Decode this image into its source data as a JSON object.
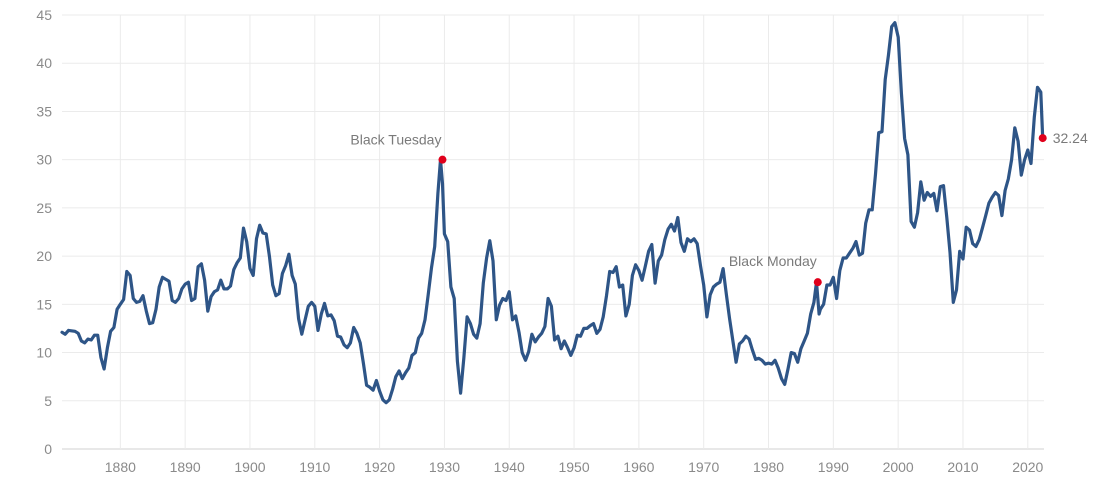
{
  "chart_data": {
    "type": "line",
    "title": "",
    "xlabel": "",
    "ylabel": "",
    "xlim": [
      1871,
      2022.5
    ],
    "ylim": [
      0,
      45
    ],
    "x_ticks": [
      1880,
      1890,
      1900,
      1910,
      1920,
      1930,
      1940,
      1950,
      1960,
      1970,
      1980,
      1990,
      2000,
      2010,
      2020
    ],
    "y_ticks": [
      0,
      5,
      10,
      15,
      20,
      25,
      30,
      35,
      40,
      45
    ],
    "grid": true,
    "line_color": "#2e5587",
    "marker_color": "#e0001b",
    "series": [
      {
        "x": [
          1871,
          1871.5,
          1872,
          1873,
          1873.5,
          1874,
          1874.5,
          1875,
          1875.5,
          1876,
          1876.5,
          1877,
          1877.5,
          1878,
          1878.5,
          1879,
          1879.5,
          1880,
          1880.5,
          1881,
          1881.5,
          1882,
          1882.5,
          1883,
          1883.5,
          1884,
          1884.5,
          1885,
          1885.5,
          1886,
          1886.5,
          1887,
          1887.5,
          1888,
          1888.5,
          1889,
          1889.5,
          1890,
          1890.5,
          1891,
          1891.5,
          1892,
          1892.5,
          1893,
          1893.5,
          1894,
          1894.5,
          1895,
          1895.5,
          1896,
          1896.5,
          1897,
          1897.5,
          1898,
          1898.5,
          1899,
          1899.5,
          1900,
          1900.5,
          1901,
          1901.5,
          1902,
          1902.5,
          1903,
          1903.5,
          1904,
          1904.5,
          1905,
          1905.5,
          1906,
          1906.5,
          1907,
          1907.5,
          1908,
          1908.5,
          1909,
          1909.5,
          1910,
          1910.5,
          1911,
          1911.5,
          1912,
          1912.5,
          1913,
          1913.5,
          1914,
          1914.5,
          1915,
          1915.5,
          1916,
          1916.5,
          1917,
          1917.5,
          1918,
          1918.5,
          1919,
          1919.5,
          1920,
          1920.5,
          1921,
          1921.5,
          1922,
          1922.5,
          1923,
          1923.5,
          1924,
          1924.5,
          1925,
          1925.5,
          1926,
          1926.5,
          1927,
          1927.5,
          1928,
          1928.5,
          1929,
          1929.4,
          1929.7,
          1930,
          1930.5,
          1931,
          1931.5,
          1932,
          1932.5,
          1933,
          1933.5,
          1934,
          1934.5,
          1935,
          1935.5,
          1936,
          1936.5,
          1937,
          1937.5,
          1938,
          1938.5,
          1939,
          1939.5,
          1940,
          1940.5,
          1941,
          1941.5,
          1942,
          1942.5,
          1943,
          1943.5,
          1944,
          1944.5,
          1945,
          1945.5,
          1946,
          1946.5,
          1947,
          1947.5,
          1948,
          1948.5,
          1949,
          1949.5,
          1950,
          1950.5,
          1951,
          1951.5,
          1952,
          1952.5,
          1953,
          1953.5,
          1954,
          1954.5,
          1955,
          1955.5,
          1956,
          1956.5,
          1957,
          1957.5,
          1958,
          1958.5,
          1959,
          1959.5,
          1960,
          1960.5,
          1961,
          1961.5,
          1962,
          1962.5,
          1963,
          1963.5,
          1964,
          1964.5,
          1965,
          1965.5,
          1966,
          1966.5,
          1967,
          1967.5,
          1968,
          1968.5,
          1969,
          1969.5,
          1970,
          1970.5,
          1971,
          1971.5,
          1972,
          1972.5,
          1973,
          1973.5,
          1974,
          1974.5,
          1975,
          1975.5,
          1976,
          1976.5,
          1977,
          1977.5,
          1978,
          1978.5,
          1979,
          1979.5,
          1980,
          1980.5,
          1981,
          1981.5,
          1982,
          1982.5,
          1983,
          1983.5,
          1984,
          1984.5,
          1985,
          1985.5,
          1986,
          1986.5,
          1987,
          1987.4,
          1987.8,
          1988,
          1988.5,
          1989,
          1989.5,
          1990,
          1990.5,
          1991,
          1991.5,
          1992,
          1992.5,
          1993,
          1993.5,
          1994,
          1994.5,
          1995,
          1995.5,
          1996,
          1996.5,
          1997,
          1997.5,
          1998,
          1998.5,
          1999,
          1999.5,
          2000,
          2000.5,
          2001,
          2001.5,
          2002,
          2002.5,
          2003,
          2003.5,
          2004,
          2004.5,
          2005,
          2005.5,
          2006,
          2006.5,
          2007,
          2007.5,
          2008,
          2008.5,
          2009,
          2009.5,
          2010,
          2010.5,
          2011,
          2011.5,
          2012,
          2012.5,
          2013,
          2013.5,
          2014,
          2014.5,
          2015,
          2015.5,
          2016,
          2016.5,
          2017,
          2017.5,
          2018,
          2018.5,
          2019,
          2019.5,
          2020,
          2020.5,
          2021,
          2021.5,
          2022,
          2022.3
        ],
        "y": [
          12.1,
          11.9,
          12.3,
          12.2,
          12.0,
          11.2,
          11.0,
          11.4,
          11.3,
          11.8,
          11.8,
          9.5,
          8.3,
          10.5,
          12.2,
          12.6,
          14.5,
          15.0,
          15.5,
          18.4,
          18.0,
          15.6,
          15.2,
          15.3,
          15.9,
          14.3,
          13.0,
          13.1,
          14.5,
          16.8,
          17.8,
          17.6,
          17.4,
          15.4,
          15.2,
          15.6,
          16.6,
          17.1,
          17.3,
          15.4,
          15.6,
          18.9,
          19.2,
          17.5,
          14.3,
          15.8,
          16.3,
          16.5,
          17.5,
          16.6,
          16.6,
          16.9,
          18.6,
          19.3,
          19.8,
          22.9,
          21.5,
          18.7,
          18.0,
          21.8,
          23.2,
          22.4,
          22.3,
          20.0,
          17.0,
          15.9,
          16.1,
          18.2,
          19.0,
          20.2,
          18.0,
          17.1,
          13.5,
          11.9,
          13.4,
          14.8,
          15.2,
          14.8,
          12.3,
          14.0,
          15.1,
          13.8,
          13.9,
          13.3,
          11.7,
          11.6,
          10.8,
          10.5,
          11.0,
          12.6,
          12.0,
          11.0,
          8.9,
          6.6,
          6.4,
          6.1,
          7.1,
          6.0,
          5.1,
          4.8,
          5.1,
          6.2,
          7.5,
          8.1,
          7.3,
          7.9,
          8.4,
          9.7,
          10.0,
          11.5,
          12.0,
          13.4,
          16.0,
          18.8,
          21.0,
          26.5,
          30.0,
          27.5,
          22.3,
          21.5,
          16.8,
          15.6,
          9.1,
          5.8,
          9.5,
          13.7,
          13.0,
          11.9,
          11.5,
          13.0,
          17.2,
          19.8,
          21.6,
          19.5,
          13.4,
          14.9,
          15.6,
          15.4,
          16.3,
          13.4,
          13.8,
          12.1,
          10.0,
          9.2,
          10.1,
          11.9,
          11.1,
          11.6,
          12.0,
          12.7,
          15.6,
          14.8,
          11.3,
          11.7,
          10.4,
          11.2,
          10.5,
          9.7,
          10.5,
          11.8,
          11.7,
          12.5,
          12.5,
          12.8,
          13.0,
          12.0,
          12.4,
          13.7,
          15.9,
          18.4,
          18.3,
          18.9,
          16.8,
          17.0,
          13.8,
          15.0,
          18.0,
          19.1,
          18.5,
          17.5,
          19.0,
          20.5,
          21.2,
          17.2,
          19.5,
          20.1,
          21.7,
          22.8,
          23.3,
          22.6,
          24.0,
          21.4,
          20.5,
          21.8,
          21.5,
          21.8,
          21.3,
          19.0,
          17.0,
          13.7,
          16.0,
          16.8,
          17.1,
          17.3,
          18.7,
          16.0,
          13.5,
          11.2,
          9.0,
          10.9,
          11.2,
          11.7,
          11.4,
          10.3,
          9.3,
          9.4,
          9.2,
          8.8,
          8.9,
          8.8,
          9.2,
          8.4,
          7.3,
          6.7,
          8.3,
          10.0,
          9.9,
          9.0,
          10.4,
          11.2,
          12.0,
          14.0,
          15.2,
          17.3,
          14.0,
          14.5,
          15.0,
          17.0,
          17.0,
          17.8,
          15.6,
          18.5,
          19.8,
          19.8,
          20.3,
          20.8,
          21.5,
          20.1,
          20.3,
          23.4,
          24.8,
          24.8,
          28.5,
          32.8,
          32.9,
          38.3,
          40.8,
          43.8,
          44.2,
          42.7,
          36.9,
          32.2,
          30.5,
          23.6,
          23.0,
          24.5,
          27.7,
          25.8,
          26.6,
          26.2,
          26.5,
          24.7,
          27.2,
          27.3,
          24.0,
          20.4,
          15.2,
          16.5,
          20.5,
          19.7,
          23.0,
          22.7,
          21.3,
          21.0,
          21.7,
          22.9,
          24.2,
          25.5,
          26.1,
          26.6,
          26.3,
          24.2,
          26.8,
          28.0,
          30.0,
          33.3,
          31.9,
          28.4,
          30.0,
          31.0,
          29.6,
          34.4,
          37.5,
          37.0,
          32.24
        ]
      }
    ],
    "annotations": [
      {
        "x": 1929.7,
        "y": 30.0,
        "label": "Black Tuesday"
      },
      {
        "x": 1987.6,
        "y": 17.3,
        "label": "Black Monday"
      },
      {
        "x": 2022.3,
        "y": 32.24,
        "label": "32.24"
      }
    ]
  }
}
